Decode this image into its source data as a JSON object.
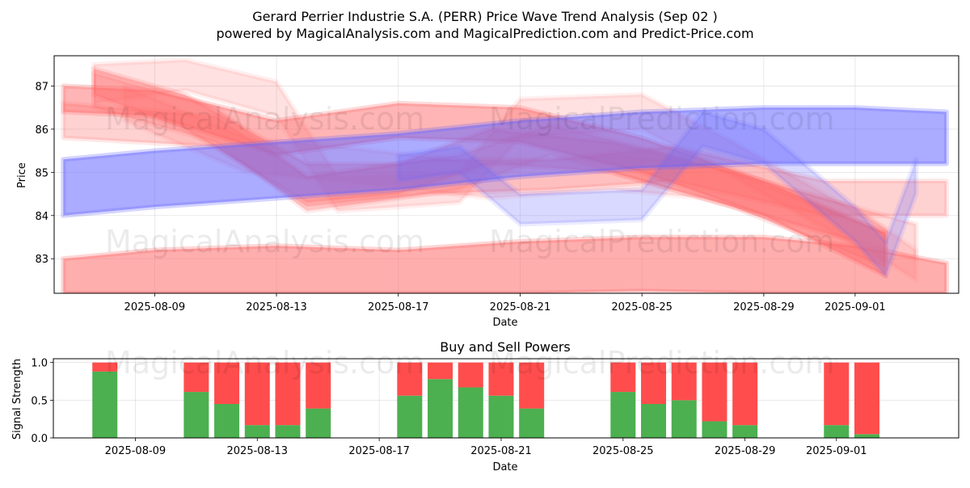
{
  "header": {
    "title": "Gerard Perrier Industrie S.A. (PERR) Price Wave Trend Analysis (Sep 02 )",
    "subtitle": "powered by MagicalAnalysis.com and MagicalPrediction.com and Predict-Price.com"
  },
  "watermarks": {
    "left": "MagicalAnalysis.com",
    "right": "MagicalPrediction.com"
  },
  "colors": {
    "buy": "#4caf50",
    "sell": "#ff4d4d",
    "red_wave": "#ff6b6b",
    "blue_wave": "#6666ff"
  },
  "chart_data": [
    {
      "type": "area",
      "name": "price-wave-chart",
      "title": "",
      "xlabel": "Date",
      "ylabel": "Price",
      "x_range": [
        "2025-08-06",
        "2025-09-04"
      ],
      "ylim": [
        82.2,
        87.7
      ],
      "y_ticks": [
        83,
        84,
        85,
        86,
        87
      ],
      "x_ticks": [
        "2025-08-09",
        "2025-08-13",
        "2025-08-17",
        "2025-08-21",
        "2025-08-25",
        "2025-08-29",
        "2025-09-01"
      ],
      "grid": true,
      "series": [
        {
          "name": "red-wave-1",
          "color": "red",
          "opacity": 0.5,
          "points": [
            [
              "2025-08-06",
              86.4,
              87.0
            ],
            [
              "2025-08-09",
              86.3,
              86.9
            ],
            [
              "2025-08-13",
              85.4,
              86.2
            ],
            [
              "2025-08-17",
              85.8,
              86.6
            ],
            [
              "2025-08-21",
              85.7,
              86.5
            ],
            [
              "2025-08-25",
              85.0,
              85.8
            ],
            [
              "2025-08-29",
              84.0,
              84.8
            ],
            [
              "2025-09-02",
              82.6,
              83.6
            ]
          ]
        },
        {
          "name": "red-wave-2",
          "color": "red",
          "opacity": 0.35,
          "points": [
            [
              "2025-08-07",
              86.8,
              87.4
            ],
            [
              "2025-08-10",
              86.0,
              86.8
            ],
            [
              "2025-08-14",
              84.3,
              85.2
            ],
            [
              "2025-08-17",
              84.5,
              85.2
            ],
            [
              "2025-08-20",
              85.2,
              86.0
            ],
            [
              "2025-08-24",
              85.0,
              85.7
            ],
            [
              "2025-08-28",
              84.2,
              85.0
            ],
            [
              "2025-09-02",
              82.8,
              83.6
            ]
          ]
        },
        {
          "name": "red-wave-3",
          "color": "red",
          "opacity": 0.25,
          "points": [
            [
              "2025-08-07",
              86.5,
              87.3
            ],
            [
              "2025-08-11",
              85.7,
              86.5
            ],
            [
              "2025-08-14",
              84.1,
              84.9
            ],
            [
              "2025-08-19",
              84.6,
              85.4
            ],
            [
              "2025-08-22",
              85.4,
              86.1
            ],
            [
              "2025-08-26",
              84.6,
              85.4
            ],
            [
              "2025-08-30",
              83.8,
              84.6
            ],
            [
              "2025-09-03",
              83.0,
              83.8
            ]
          ]
        },
        {
          "name": "red-wave-4",
          "color": "red",
          "opacity": 0.2,
          "points": [
            [
              "2025-08-07",
              86.6,
              87.5
            ],
            [
              "2025-08-10",
              86.9,
              87.6
            ],
            [
              "2025-08-13",
              86.3,
              87.1
            ],
            [
              "2025-08-15",
              84.1,
              84.9
            ],
            [
              "2025-08-19",
              84.3,
              85.0
            ],
            [
              "2025-08-21",
              85.8,
              86.7
            ],
            [
              "2025-08-25",
              86.0,
              86.8
            ],
            [
              "2025-08-28",
              84.9,
              85.7
            ],
            [
              "2025-09-02",
              82.9,
              83.7
            ]
          ]
        },
        {
          "name": "red-wave-5",
          "color": "red",
          "opacity": 0.3,
          "points": [
            [
              "2025-08-06",
              85.8,
              86.6
            ],
            [
              "2025-08-11",
              85.6,
              86.3
            ],
            [
              "2025-08-14",
              84.2,
              84.9
            ],
            [
              "2025-08-18",
              84.5,
              85.3
            ],
            [
              "2025-08-22",
              84.6,
              85.3
            ],
            [
              "2025-08-26",
              84.8,
              85.6
            ],
            [
              "2025-08-31",
              84.0,
              84.8
            ],
            [
              "2025-09-04",
              84.0,
              84.8
            ]
          ]
        },
        {
          "name": "red-wave-6",
          "color": "red",
          "opacity": 0.18,
          "points": [
            [
              "2025-08-08",
              86.2,
              87.0
            ],
            [
              "2025-08-12",
              85.0,
              85.8
            ],
            [
              "2025-08-15",
              84.8,
              85.6
            ],
            [
              "2025-08-20",
              84.4,
              85.2
            ],
            [
              "2025-08-24",
              84.6,
              85.4
            ],
            [
              "2025-08-27",
              84.4,
              85.2
            ],
            [
              "2025-09-01",
              83.4,
              84.2
            ],
            [
              "2025-09-03",
              82.5,
              83.2
            ]
          ]
        },
        {
          "name": "red-wave-low",
          "color": "red",
          "opacity": 0.55,
          "points": [
            [
              "2025-08-06",
              82.2,
              83.0
            ],
            [
              "2025-08-09",
              82.2,
              83.2
            ],
            [
              "2025-08-13",
              82.2,
              83.3
            ],
            [
              "2025-08-17",
              82.2,
              83.2
            ],
            [
              "2025-08-21",
              82.2,
              83.4
            ],
            [
              "2025-08-25",
              82.25,
              83.5
            ],
            [
              "2025-08-29",
              82.2,
              83.5
            ],
            [
              "2025-09-01",
              82.2,
              83.3
            ],
            [
              "2025-09-04",
              82.2,
              82.9
            ]
          ]
        },
        {
          "name": "blue-wave-1",
          "color": "blue",
          "opacity": 0.55,
          "points": [
            [
              "2025-08-06",
              84.0,
              85.3
            ],
            [
              "2025-08-09",
              84.2,
              85.5
            ],
            [
              "2025-08-13",
              84.4,
              85.7
            ],
            [
              "2025-08-17",
              84.6,
              85.9
            ],
            [
              "2025-08-21",
              84.9,
              86.2
            ],
            [
              "2025-08-25",
              85.1,
              86.4
            ],
            [
              "2025-08-29",
              85.2,
              86.5
            ],
            [
              "2025-09-01",
              85.2,
              86.5
            ],
            [
              "2025-09-04",
              85.2,
              86.4
            ]
          ]
        },
        {
          "name": "blue-wave-2",
          "color": "blue",
          "opacity": 0.25,
          "points": [
            [
              "2025-08-17",
              84.8,
              85.4
            ],
            [
              "2025-08-19",
              85.0,
              85.6
            ],
            [
              "2025-08-21",
              83.8,
              84.5
            ],
            [
              "2025-08-25",
              83.9,
              84.6
            ],
            [
              "2025-08-27",
              85.6,
              86.4
            ],
            [
              "2025-08-29",
              85.2,
              86.0
            ],
            [
              "2025-09-01",
              83.4,
              84.2
            ],
            [
              "2025-09-02",
              82.6,
              83.4
            ],
            [
              "2025-09-03",
              84.5,
              85.3
            ]
          ]
        }
      ]
    },
    {
      "type": "bar",
      "name": "buy-sell-power-chart",
      "title": "Buy and Sell Powers",
      "xlabel": "Date",
      "ylabel": "Signal Strength",
      "x_range": [
        "2025-08-06",
        "2025-09-04"
      ],
      "ylim": [
        0.0,
        1.05
      ],
      "y_ticks": [
        0.0,
        0.5,
        1.0
      ],
      "x_ticks": [
        "2025-08-09",
        "2025-08-13",
        "2025-08-17",
        "2025-08-21",
        "2025-08-25",
        "2025-08-29",
        "2025-09-01"
      ],
      "grid": true,
      "categories": [
        "2025-08-08",
        "2025-08-11",
        "2025-08-12",
        "2025-08-13",
        "2025-08-14",
        "2025-08-15",
        "2025-08-18",
        "2025-08-19",
        "2025-08-20",
        "2025-08-21",
        "2025-08-22",
        "2025-08-25",
        "2025-08-26",
        "2025-08-27",
        "2025-08-28",
        "2025-08-29",
        "2025-09-01",
        "2025-09-02"
      ],
      "series": [
        {
          "name": "Buy",
          "values": [
            0.88,
            0.61,
            0.45,
            0.17,
            0.17,
            0.39,
            0.56,
            0.78,
            0.67,
            0.56,
            0.39,
            0.61,
            0.45,
            0.5,
            0.22,
            0.17,
            0.17,
            0.05
          ]
        },
        {
          "name": "Sell",
          "values": [
            0.12,
            0.39,
            0.55,
            0.83,
            0.83,
            0.61,
            0.44,
            0.22,
            0.33,
            0.44,
            0.61,
            0.39,
            0.55,
            0.5,
            0.78,
            0.83,
            0.83,
            0.95
          ]
        }
      ]
    }
  ]
}
